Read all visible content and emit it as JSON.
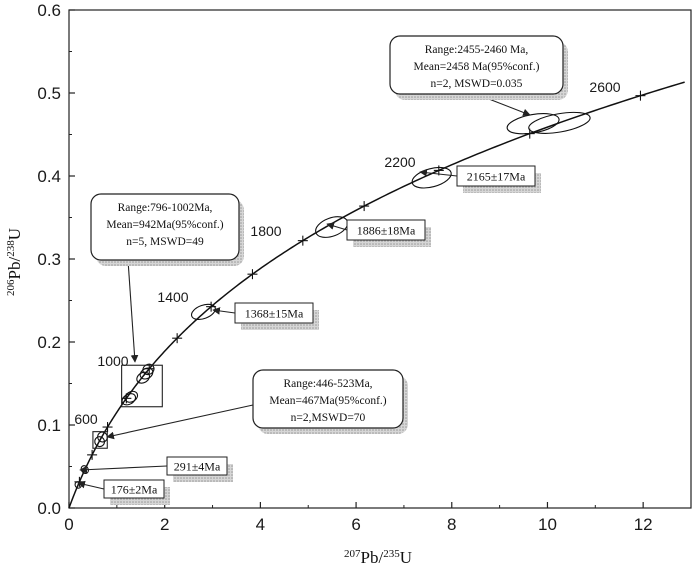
{
  "chart_data": {
    "type": "scatter",
    "subtype": "U-Pb concordia diagram",
    "xlabel": {
      "sup1": "207",
      "main1": "Pb/",
      "sup2": "235",
      "main2": "U"
    },
    "ylabel": {
      "sup1": "206",
      "main1": "Pb/",
      "sup2": "238",
      "main2": "U"
    },
    "xlim": [
      0,
      13
    ],
    "ylim": [
      0,
      0.6
    ],
    "x_ticks": [
      0,
      2,
      4,
      6,
      8,
      10,
      12
    ],
    "y_ticks": [
      0.0,
      0.1,
      0.2,
      0.3,
      0.4,
      0.5,
      0.6
    ],
    "y_tick_labels": [
      "0.0",
      "0.1",
      "0.2",
      "0.3",
      "0.4",
      "0.5",
      "0.6"
    ],
    "concordia_age_ticks_ma": [
      200,
      400,
      600,
      800,
      1000,
      1200,
      1400,
      1600,
      1800,
      2000,
      2200,
      2400,
      2600
    ],
    "concordia_age_labels": [
      {
        "age": 600,
        "text": "600"
      },
      {
        "age": 1000,
        "text": "1000"
      },
      {
        "age": 1400,
        "text": "1400"
      },
      {
        "age": 1800,
        "text": "1800"
      },
      {
        "age": 2200,
        "text": "2200"
      },
      {
        "age": 2600,
        "text": "2600"
      }
    ],
    "error_ellipses": [
      {
        "x": 0.19,
        "y": 0.0277,
        "rx": 0.06,
        "ry": 0.004,
        "angle": 35
      },
      {
        "x": 0.33,
        "y": 0.0463,
        "rx": 0.07,
        "ry": 0.005,
        "angle": 35
      },
      {
        "x": 0.64,
        "y": 0.08,
        "rx": 0.1,
        "ry": 0.006,
        "angle": 35
      },
      {
        "x": 0.7,
        "y": 0.0855,
        "rx": 0.1,
        "ry": 0.006,
        "angle": 35
      },
      {
        "x": 1.25,
        "y": 0.131,
        "rx": 0.15,
        "ry": 0.006,
        "angle": 30
      },
      {
        "x": 1.3,
        "y": 0.134,
        "rx": 0.14,
        "ry": 0.006,
        "angle": 30
      },
      {
        "x": 1.55,
        "y": 0.157,
        "rx": 0.14,
        "ry": 0.006,
        "angle": 30
      },
      {
        "x": 1.62,
        "y": 0.162,
        "rx": 0.14,
        "ry": 0.006,
        "angle": 30
      },
      {
        "x": 1.66,
        "y": 0.167,
        "rx": 0.12,
        "ry": 0.006,
        "angle": 30
      },
      {
        "x": 2.81,
        "y": 0.2363,
        "rx": 0.26,
        "ry": 0.008,
        "angle": 20
      },
      {
        "x": 5.49,
        "y": 0.3385,
        "rx": 0.35,
        "ry": 0.011,
        "angle": 20
      },
      {
        "x": 7.58,
        "y": 0.3979,
        "rx": 0.42,
        "ry": 0.011,
        "angle": 15
      },
      {
        "x": 10.25,
        "y": 0.464,
        "rx": 0.65,
        "ry": 0.011,
        "angle": 10
      },
      {
        "x": 9.7,
        "y": 0.463,
        "rx": 0.55,
        "ry": 0.011,
        "angle": 10
      }
    ],
    "annotations": [
      {
        "id": "range-796",
        "lines": [
          "Range:796-1002Ma,",
          "Mean=942Ma(95%conf.)",
          "n=5, MSWD=49"
        ],
        "style": "rounded",
        "target": "box-1000"
      },
      {
        "id": "range-446",
        "lines": [
          "Range:446-523Ma,",
          "Mean=467Ma(95%conf.)",
          "n=2,MSWD=70"
        ],
        "style": "rounded",
        "target": "box-600"
      },
      {
        "id": "range-2455",
        "lines": [
          "Range:2455-2460 Ma,",
          "Mean=2458 Ma(95%conf.)",
          "n=2, MSWD=0.035"
        ],
        "style": "rounded",
        "target": "ellipse-2458"
      },
      {
        "id": "age-2165",
        "lines": [
          "2165±17Ma"
        ],
        "style": "shadow"
      },
      {
        "id": "age-1886",
        "lines": [
          "1886±18Ma"
        ],
        "style": "shadow"
      },
      {
        "id": "age-1368",
        "lines": [
          "1368±15Ma"
        ],
        "style": "shadow"
      },
      {
        "id": "age-291",
        "lines": [
          "291±4Ma"
        ],
        "style": "shadow"
      },
      {
        "id": "age-176",
        "lines": [
          "176±2Ma"
        ],
        "style": "shadow"
      }
    ],
    "grid": false
  }
}
